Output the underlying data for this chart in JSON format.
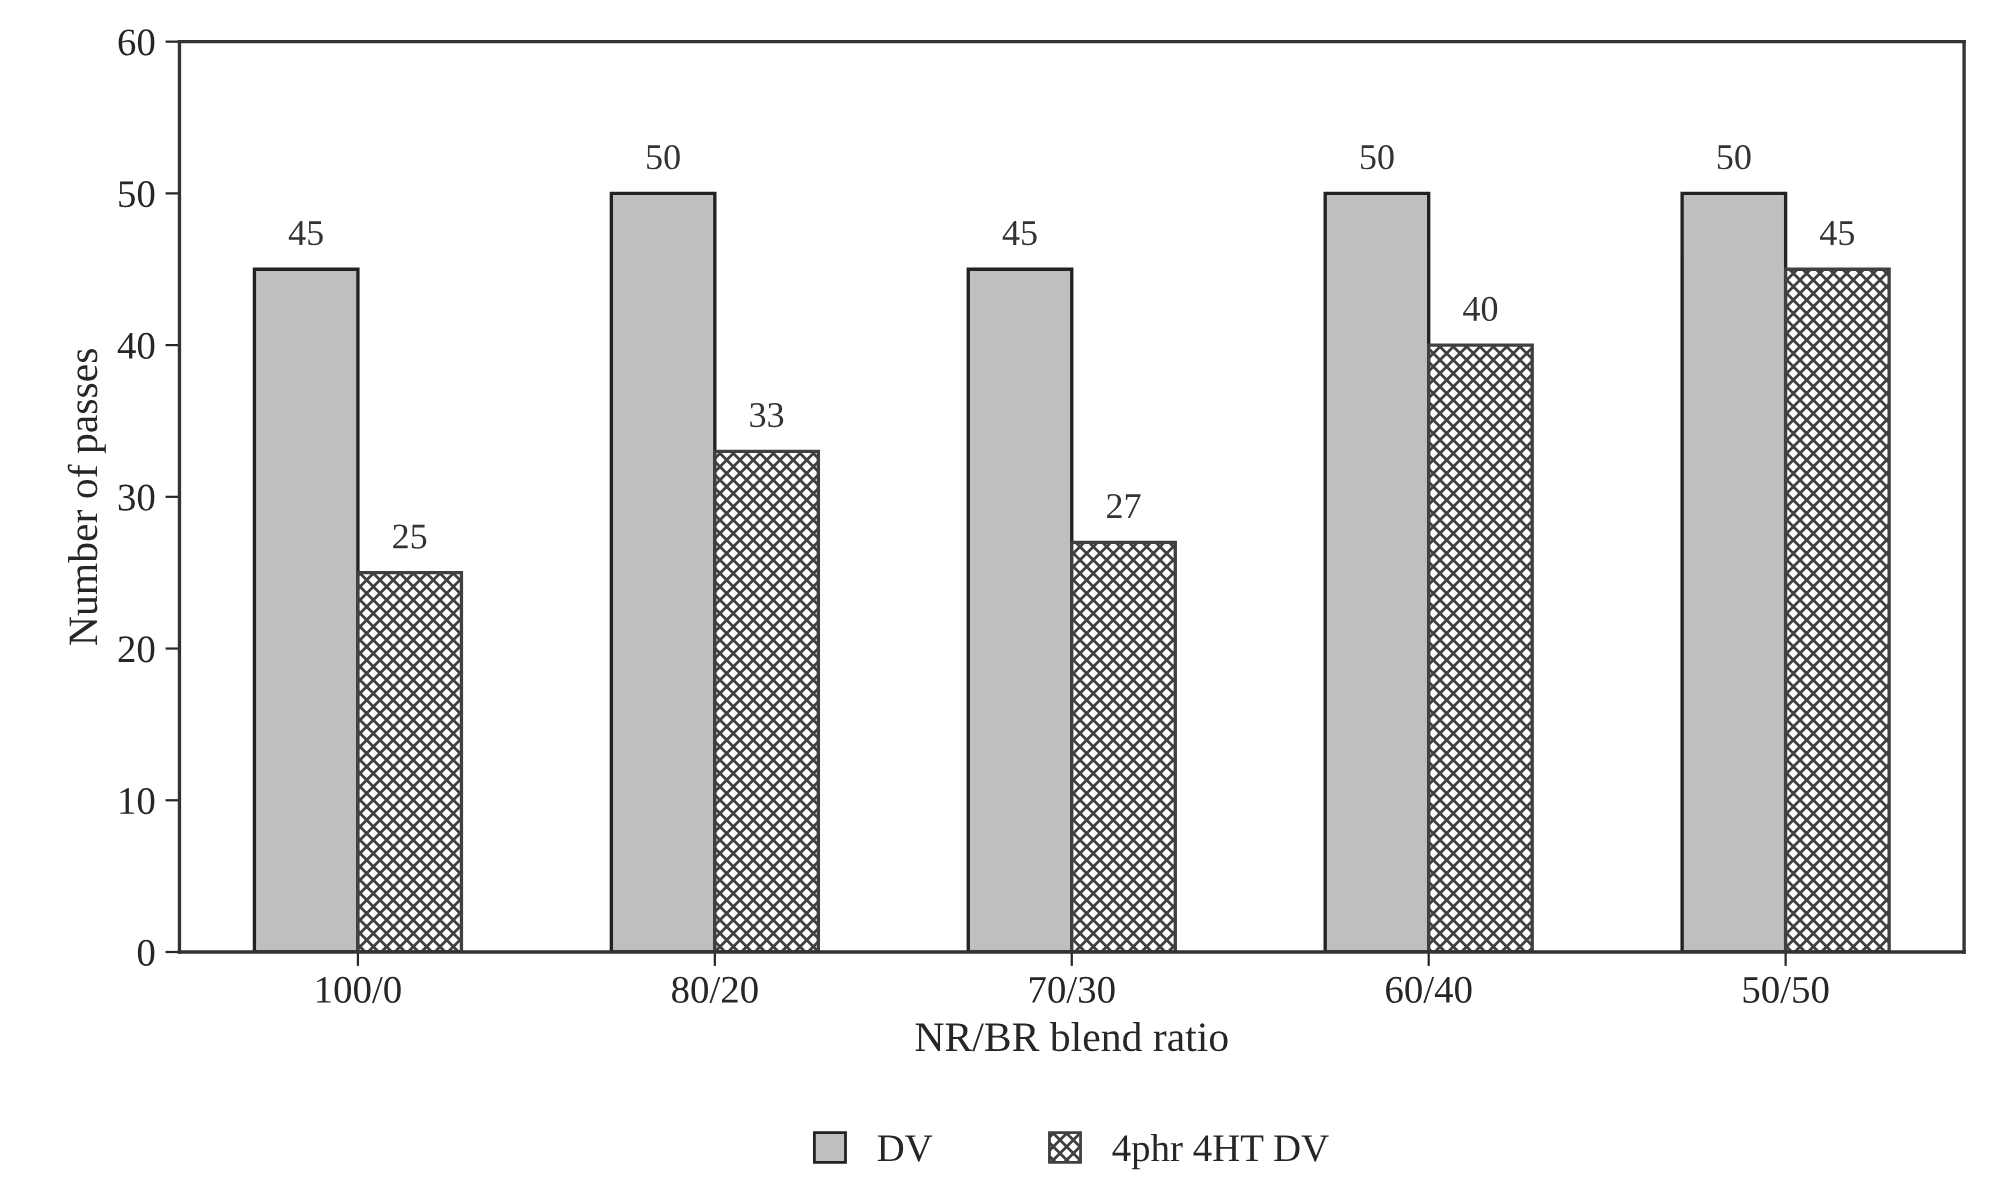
{
  "chart_data": {
    "type": "bar",
    "xlabel": "NR/BR blend ratio",
    "ylabel": "Number of passes",
    "categories": [
      "100/0",
      "80/20",
      "70/30",
      "60/40",
      "50/50"
    ],
    "series": [
      {
        "name": "DV",
        "color": "#bfbfbf",
        "values": [
          45,
          50,
          45,
          50,
          50
        ]
      },
      {
        "name": "4phr 4HT DV",
        "color": "#404040",
        "values": [
          25,
          33,
          27,
          40,
          45
        ]
      }
    ],
    "ylim": [
      0,
      60
    ],
    "yticks": [
      0,
      10,
      20,
      30,
      40,
      50,
      60
    ],
    "data_labels": true,
    "grid": false,
    "legend": "bottom"
  }
}
